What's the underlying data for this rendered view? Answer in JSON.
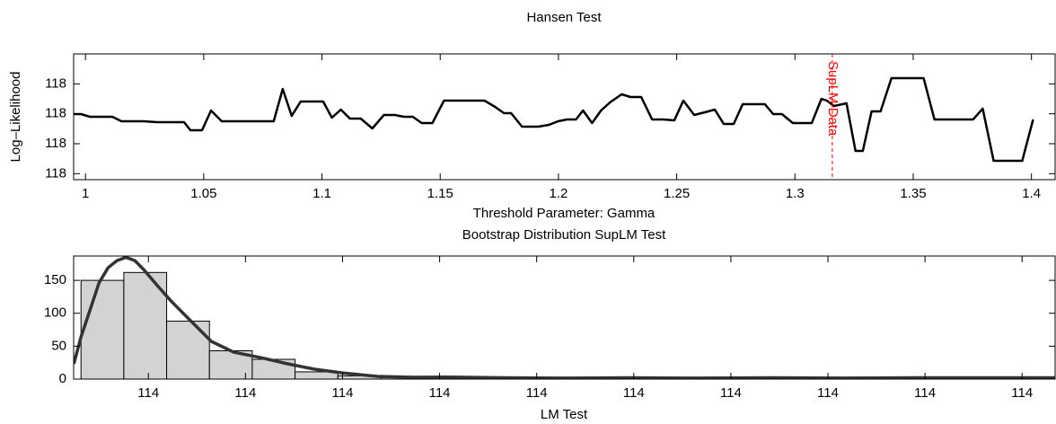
{
  "chart_data": [
    {
      "type": "line",
      "title": "Hansen Test",
      "ylabel": "Log–Likelihood",
      "xlabel": "Threshold Parameter: Gamma",
      "x": [
        0.9951,
        0.9981,
        1.0019,
        1.0064,
        1.0114,
        1.0152,
        1.0246,
        1.0303,
        1.0417,
        1.0444,
        1.0493,
        1.0531,
        1.0576,
        1.0663,
        1.0796,
        1.0834,
        1.0872,
        1.091,
        1.1005,
        1.1042,
        1.108,
        1.1118,
        1.1164,
        1.1213,
        1.1262,
        1.1308,
        1.1346,
        1.1384,
        1.1422,
        1.1467,
        1.1516,
        1.1611,
        1.1687,
        1.1732,
        1.177,
        1.18,
        1.1846,
        1.1914,
        1.196,
        1.1998,
        1.2036,
        1.2074,
        1.2104,
        1.2142,
        1.218,
        1.2218,
        1.2267,
        1.2305,
        1.235,
        1.2396,
        1.2445,
        1.249,
        1.2528,
        1.2574,
        1.2619,
        1.2661,
        1.2699,
        1.2741,
        1.2779,
        1.2824,
        1.2873,
        1.2908,
        1.2945,
        1.2991,
        1.3071,
        1.3112,
        1.3135,
        1.3165,
        1.3218,
        1.3256,
        1.3287,
        1.3324,
        1.3362,
        1.3408,
        1.3453,
        1.3544,
        1.359,
        1.3639,
        1.3753,
        1.3794,
        1.384,
        1.3885,
        1.3961,
        1.4007
      ],
      "series": [
        {
          "color": "#000000",
          "values": [
            118.0495,
            118.0495,
            118.045,
            118.045,
            118.045,
            118.0375,
            118.0375,
            118.036,
            118.036,
            118.0225,
            118.0225,
            118.0555,
            118.0375,
            118.0375,
            118.0375,
            118.0915,
            118.0465,
            118.0705,
            118.0705,
            118.0435,
            118.057,
            118.042,
            118.042,
            118.0255,
            118.048,
            118.048,
            118.045,
            118.045,
            118.0345,
            118.0345,
            118.072,
            118.072,
            118.072,
            118.0615,
            118.051,
            118.051,
            118.0285,
            118.0285,
            118.0315,
            118.0375,
            118.0405,
            118.0405,
            118.0555,
            118.0345,
            118.0555,
            118.069,
            118.0825,
            118.078,
            118.078,
            118.0405,
            118.0405,
            118.039,
            118.072,
            118.048,
            118.0525,
            118.057,
            118.033,
            118.033,
            118.066,
            118.066,
            118.066,
            118.0495,
            118.0495,
            118.0345,
            118.0345,
            118.075,
            118.072,
            118.063,
            118.0675,
            117.988,
            117.988,
            118.054,
            118.054,
            118.1095,
            118.1095,
            118.1095,
            118.0405,
            118.0405,
            118.0405,
            118.0585,
            117.9715,
            117.9715,
            117.9715,
            118.0405
          ]
        }
      ],
      "xlim": [
        0.995,
        1.41
      ],
      "xticks": [
        1,
        1.05,
        1.1,
        1.15,
        1.2,
        1.25,
        1.3,
        1.35,
        1.4
      ],
      "ylim": [
        117.94,
        118.15
      ],
      "yticks": [
        {
          "value": 117.95,
          "label": "118"
        },
        {
          "value": 118.0,
          "label": "118"
        },
        {
          "value": 118.05,
          "label": "118"
        },
        {
          "value": 118.1,
          "label": "118"
        }
      ],
      "annotations": [
        {
          "x": 1.3158,
          "text": "SupLM Data",
          "color": "#ff0000"
        }
      ]
    },
    {
      "type": "histogram",
      "title": "Bootstrap Distribution SupLM Test",
      "xlabel": "LM Test",
      "bins": [
        113.4806,
        113.5247,
        113.5688,
        113.6129,
        113.657,
        113.7011,
        113.7452,
        113.7893,
        113.8334,
        113.8775,
        113.9216,
        113.9657,
        114.0098,
        114.0539,
        114.098,
        114.1421,
        114.1862,
        114.2303,
        114.2744,
        114.3185,
        114.3626,
        114.4067,
        114.4508
      ],
      "values": [
        150,
        162,
        88,
        43,
        30,
        11,
        5,
        2,
        1,
        1,
        2,
        1,
        0,
        1,
        1,
        1,
        2,
        0,
        1,
        1,
        0,
        1
      ],
      "color": "#d3d3d3",
      "edgecolor": "#000000",
      "curve": {
        "color": "#333333",
        "x": [
          113.4732,
          113.4806,
          113.4899,
          113.4991,
          113.5084,
          113.5176,
          113.5269,
          113.5361,
          113.5454,
          113.5593,
          113.5731,
          113.5916,
          113.6148,
          113.6379,
          113.6656,
          113.6934,
          113.7211,
          113.7489,
          113.7859,
          113.8229,
          113.8599,
          113.9154,
          113.9709,
          114.0449,
          114.1189,
          114.1929,
          114.2669,
          114.3409,
          114.4149,
          114.4843
        ],
        "values": [
          23.2,
          64.1,
          105,
          146,
          169,
          180,
          185,
          180,
          166,
          142,
          119,
          91.4,
          57.3,
          40.9,
          32.7,
          23.2,
          15,
          9.5,
          4.1,
          2.7,
          3,
          2,
          1.5,
          2,
          1.5,
          2,
          1.5,
          2,
          2,
          2
        ]
      },
      "xlim": [
        113.473,
        114.484
      ],
      "xticks": [
        {
          "value": 113.55,
          "label": "114"
        },
        {
          "value": 113.65,
          "label": "114"
        },
        {
          "value": 113.75,
          "label": "114"
        },
        {
          "value": 113.85,
          "label": "114"
        },
        {
          "value": 113.95,
          "label": "114"
        },
        {
          "value": 114.05,
          "label": "114"
        },
        {
          "value": 114.15,
          "label": "114"
        },
        {
          "value": 114.25,
          "label": "114"
        },
        {
          "value": 114.35,
          "label": "114"
        },
        {
          "value": 114.45,
          "label": "114"
        }
      ],
      "ylim": [
        0,
        187
      ],
      "yticks": [
        0,
        50,
        100,
        150
      ]
    }
  ]
}
